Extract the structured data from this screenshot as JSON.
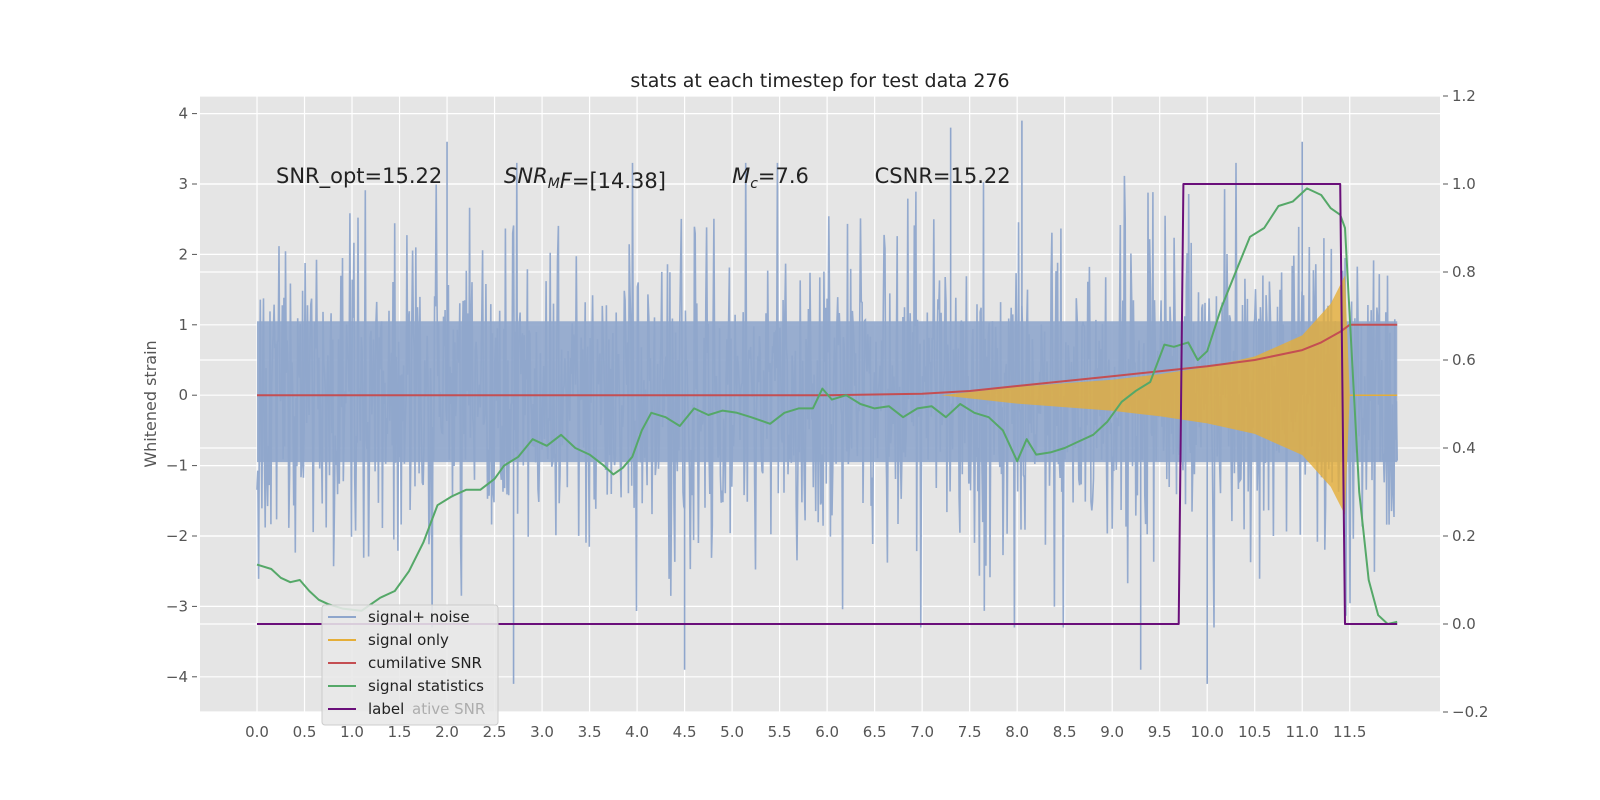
{
  "chart_data": {
    "type": "line",
    "title": "stats at each timestep for test data 276",
    "xlabel": "",
    "ylabel": "Whitened strain",
    "y2label": "",
    "xlim": [
      -0.6,
      12.45
    ],
    "ylim": [
      -4.5,
      4.25
    ],
    "y2lim": [
      -0.2,
      1.2
    ],
    "xticks": [
      "0.0",
      "0.5",
      "1.0",
      "1.5",
      "2.0",
      "2.5",
      "3.0",
      "3.5",
      "4.0",
      "4.5",
      "5.0",
      "5.5",
      "6.0",
      "6.5",
      "7.0",
      "7.5",
      "8.0",
      "8.5",
      "9.0",
      "9.5",
      "10.0",
      "10.5",
      "11.0",
      "11.5"
    ],
    "yticks": [
      4,
      3,
      2,
      1,
      0,
      -1,
      -2,
      -3,
      -4
    ],
    "y2ticks": [
      "1.2",
      "1.0",
      "0.8",
      "0.6",
      "0.4",
      "0.2",
      "0.0",
      "−0.2"
    ],
    "grid": true,
    "legend_position": "lower-left",
    "annotations": [
      {
        "text": "SNR_opt=15.22",
        "x": 0.2,
        "y": 3.0
      },
      {
        "text": "SNR_MF=[14.38]",
        "x": 2.6,
        "y": 3.0
      },
      {
        "text": "M_c=7.6",
        "x": 5.0,
        "y": 3.0
      },
      {
        "text": "CSNR=15.22",
        "x": 6.5,
        "y": 3.0
      }
    ],
    "series": [
      {
        "name": "signal+ noise",
        "axis": "left",
        "color": "#8fa6cc",
        "kind": "noise",
        "x_range": [
          0.0,
          12.0
        ],
        "typical_amplitude": 2.2,
        "notable_spikes": [
          [
            2.0,
            3.6
          ],
          [
            2.7,
            -4.1
          ],
          [
            7.3,
            3.8
          ],
          [
            8.05,
            3.9
          ],
          [
            10.0,
            -4.1
          ],
          [
            11.0,
            3.6
          ],
          [
            4.5,
            -3.9
          ],
          [
            9.3,
            -3.9
          ]
        ]
      },
      {
        "name": "signal only",
        "axis": "left",
        "color": "#e5ae38",
        "kind": "chirp",
        "envelope": [
          [
            7.2,
            0.0
          ],
          [
            8.0,
            0.12
          ],
          [
            9.0,
            0.22
          ],
          [
            9.5,
            0.3
          ],
          [
            10.0,
            0.4
          ],
          [
            10.5,
            0.55
          ],
          [
            11.0,
            0.85
          ],
          [
            11.3,
            1.3
          ],
          [
            11.45,
            1.7
          ],
          [
            11.5,
            0.0
          ],
          [
            12.0,
            0.0
          ]
        ]
      },
      {
        "name": "cumilative SNR",
        "axis": "left",
        "color": "#c44e52",
        "kind": "line",
        "points": [
          [
            0.0,
            0.0
          ],
          [
            6.0,
            0.0
          ],
          [
            7.0,
            0.02
          ],
          [
            7.5,
            0.06
          ],
          [
            8.0,
            0.13
          ],
          [
            8.5,
            0.2
          ],
          [
            9.0,
            0.27
          ],
          [
            9.5,
            0.34
          ],
          [
            10.0,
            0.41
          ],
          [
            10.5,
            0.5
          ],
          [
            11.0,
            0.64
          ],
          [
            11.2,
            0.75
          ],
          [
            11.4,
            0.9
          ],
          [
            11.5,
            1.0
          ],
          [
            12.0,
            1.0
          ]
        ]
      },
      {
        "name": "signal statistics",
        "axis": "right",
        "color": "#55a868",
        "kind": "line",
        "points": [
          [
            0.0,
            0.135
          ],
          [
            0.15,
            0.125
          ],
          [
            0.25,
            0.105
          ],
          [
            0.35,
            0.095
          ],
          [
            0.45,
            0.1
          ],
          [
            0.55,
            0.075
          ],
          [
            0.65,
            0.055
          ],
          [
            0.75,
            0.045
          ],
          [
            0.9,
            0.035
          ],
          [
            1.1,
            0.03
          ],
          [
            1.3,
            0.06
          ],
          [
            1.45,
            0.075
          ],
          [
            1.6,
            0.12
          ],
          [
            1.75,
            0.185
          ],
          [
            1.9,
            0.27
          ],
          [
            2.05,
            0.29
          ],
          [
            2.2,
            0.305
          ],
          [
            2.35,
            0.305
          ],
          [
            2.5,
            0.33
          ],
          [
            2.6,
            0.36
          ],
          [
            2.75,
            0.38
          ],
          [
            2.9,
            0.42
          ],
          [
            3.05,
            0.405
          ],
          [
            3.2,
            0.43
          ],
          [
            3.35,
            0.4
          ],
          [
            3.5,
            0.385
          ],
          [
            3.65,
            0.36
          ],
          [
            3.75,
            0.34
          ],
          [
            3.85,
            0.355
          ],
          [
            3.95,
            0.38
          ],
          [
            4.05,
            0.44
          ],
          [
            4.15,
            0.48
          ],
          [
            4.3,
            0.47
          ],
          [
            4.45,
            0.45
          ],
          [
            4.6,
            0.49
          ],
          [
            4.75,
            0.475
          ],
          [
            4.9,
            0.485
          ],
          [
            5.05,
            0.48
          ],
          [
            5.2,
            0.47
          ],
          [
            5.4,
            0.455
          ],
          [
            5.55,
            0.48
          ],
          [
            5.7,
            0.49
          ],
          [
            5.85,
            0.49
          ],
          [
            5.95,
            0.535
          ],
          [
            6.05,
            0.51
          ],
          [
            6.2,
            0.52
          ],
          [
            6.35,
            0.5
          ],
          [
            6.5,
            0.49
          ],
          [
            6.65,
            0.495
          ],
          [
            6.8,
            0.47
          ],
          [
            6.95,
            0.49
          ],
          [
            7.1,
            0.495
          ],
          [
            7.25,
            0.47
          ],
          [
            7.4,
            0.5
          ],
          [
            7.55,
            0.48
          ],
          [
            7.7,
            0.47
          ],
          [
            7.85,
            0.44
          ],
          [
            8.0,
            0.37
          ],
          [
            8.1,
            0.42
          ],
          [
            8.2,
            0.385
          ],
          [
            8.35,
            0.39
          ],
          [
            8.5,
            0.4
          ],
          [
            8.65,
            0.415
          ],
          [
            8.8,
            0.43
          ],
          [
            8.95,
            0.46
          ],
          [
            9.1,
            0.505
          ],
          [
            9.25,
            0.53
          ],
          [
            9.4,
            0.55
          ],
          [
            9.55,
            0.635
          ],
          [
            9.65,
            0.63
          ],
          [
            9.8,
            0.64
          ],
          [
            9.9,
            0.6
          ],
          [
            10.0,
            0.62
          ],
          [
            10.15,
            0.72
          ],
          [
            10.3,
            0.8
          ],
          [
            10.45,
            0.88
          ],
          [
            10.6,
            0.9
          ],
          [
            10.75,
            0.95
          ],
          [
            10.9,
            0.96
          ],
          [
            11.05,
            0.99
          ],
          [
            11.2,
            0.975
          ],
          [
            11.3,
            0.945
          ],
          [
            11.4,
            0.93
          ],
          [
            11.45,
            0.9
          ],
          [
            11.5,
            0.7
          ],
          [
            11.6,
            0.3
          ],
          [
            11.7,
            0.1
          ],
          [
            11.8,
            0.02
          ],
          [
            11.9,
            0.0
          ],
          [
            12.0,
            0.005
          ]
        ]
      },
      {
        "name": "label",
        "axis": "right",
        "color": "#6a0f7a",
        "kind": "line",
        "points": [
          [
            0.0,
            0.0
          ],
          [
            9.7,
            0.0
          ],
          [
            9.75,
            1.0
          ],
          [
            11.4,
            1.0
          ],
          [
            11.45,
            0.0
          ],
          [
            12.0,
            0.0
          ]
        ]
      }
    ]
  },
  "legend": {
    "items": [
      {
        "label": "signal+ noise",
        "color": "#8fa6cc"
      },
      {
        "label": "signal only",
        "color": "#e5ae38"
      },
      {
        "label": "cumilative SNR",
        "color": "#c44e52"
      },
      {
        "label": "signal statistics",
        "color": "#55a868"
      },
      {
        "label": "label",
        "color": "#6a0f7a"
      }
    ],
    "ghost_text": "cumilative SNR"
  }
}
